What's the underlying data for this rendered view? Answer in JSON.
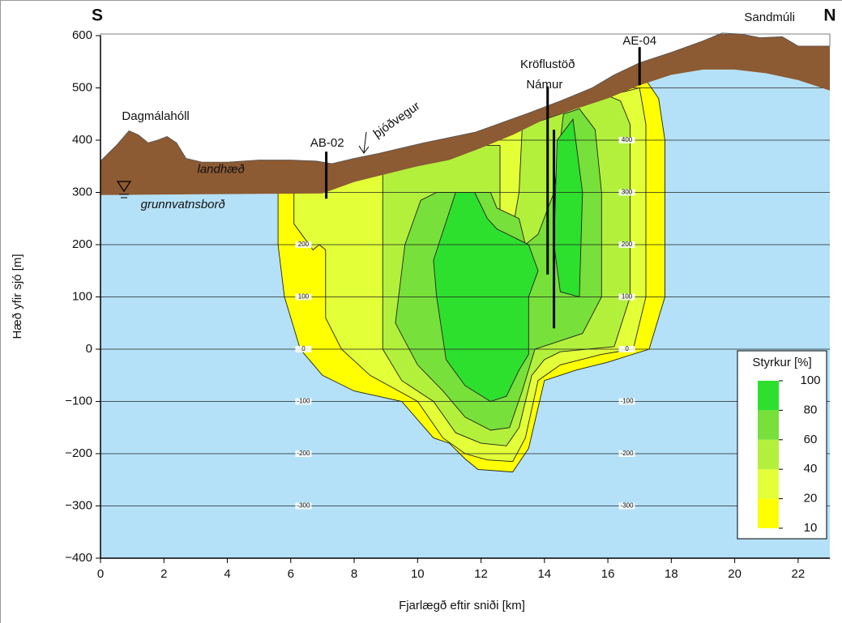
{
  "chart_data": {
    "type": "contour",
    "direction_labels": [
      "S",
      "N"
    ],
    "x_label": "Fjarlægð eftir sniði [km]",
    "y_label": "Hæð yfir sjó [m]",
    "xlim": [
      0,
      23
    ],
    "ylim": [
      -400,
      600
    ],
    "xticks": [
      0,
      2,
      4,
      6,
      8,
      10,
      12,
      14,
      16,
      18,
      20,
      22
    ],
    "yticks": [
      {
        "value": -400,
        "label": "−400"
      },
      {
        "value": -300,
        "label": "−300"
      },
      {
        "value": -200,
        "label": "−200"
      },
      {
        "value": -100,
        "label": "−100"
      },
      0,
      100,
      200,
      300,
      400,
      500,
      600
    ],
    "grid": true,
    "grid_labels": [
      {
        "x": 6.4,
        "values": [
          200,
          100,
          0,
          -100,
          -200,
          -300
        ]
      },
      {
        "x": 16.6,
        "values": [
          400,
          300,
          200,
          100,
          0,
          -100,
          -200,
          -300
        ]
      }
    ],
    "terrain": {
      "color": "#8c5a33",
      "x": [
        0,
        0.5,
        0.9,
        1.2,
        1.5,
        1.8,
        2.1,
        2.4,
        2.7,
        3.2,
        4,
        5,
        6,
        6.8,
        7.3,
        8,
        8.8,
        9.5,
        10.2,
        11,
        11.8,
        12.5,
        13.5,
        14.5,
        15.5,
        16.2,
        17,
        18,
        19,
        19.6,
        20.2,
        20.8,
        21.5,
        22,
        23
      ],
      "y": [
        360,
        390,
        418,
        410,
        395,
        400,
        407,
        395,
        365,
        358,
        358,
        362,
        362,
        360,
        355,
        365,
        375,
        385,
        395,
        405,
        415,
        430,
        452,
        475,
        500,
        525,
        548,
        568,
        590,
        605,
        603,
        596,
        598,
        580,
        580
      ]
    },
    "groundwater": {
      "color": "#b4e1f8",
      "x": [
        0,
        7,
        8,
        9,
        10,
        11,
        12,
        13,
        14,
        15,
        16,
        17,
        18,
        19,
        20,
        21,
        22,
        23
      ],
      "y": [
        295,
        298,
        320,
        335,
        350,
        362,
        385,
        410,
        440,
        460,
        480,
        505,
        525,
        535,
        535,
        528,
        515,
        495
      ]
    },
    "contours": [
      {
        "level": 10,
        "x": [
          5.6,
          5.6,
          5.8,
          6.3,
          7,
          8,
          9.5,
          10.5,
          11,
          11.5,
          11.9,
          13,
          13.5,
          14,
          15,
          16,
          17.3,
          17.8,
          17.8,
          17.6,
          17.2,
          16,
          14,
          12,
          10,
          8,
          7.2
        ],
        "y": [
          300,
          200,
          100,
          0,
          -50,
          -80,
          -100,
          -170,
          -180,
          -210,
          -230,
          -235,
          -190,
          -60,
          -40,
          -25,
          0,
          100,
          400,
          480,
          515,
          485,
          445,
          390,
          355,
          325,
          305
        ]
      },
      {
        "level": 20,
        "x": [
          6.1,
          6.1,
          6.4,
          6.7,
          6.9,
          7.1,
          7.1,
          7.6,
          8.5,
          10,
          10.8,
          11.5,
          12.2,
          13,
          13.4,
          13.8,
          14.5,
          15.8,
          16.8,
          17.2,
          17.2,
          17,
          16,
          14,
          12,
          10,
          8,
          7.2
        ],
        "y": [
          300,
          240,
          215,
          190,
          200,
          190,
          60,
          0,
          -50,
          -100,
          -170,
          -200,
          -212,
          -215,
          -170,
          -60,
          -30,
          -10,
          0,
          100,
          430,
          500,
          485,
          445,
          390,
          355,
          325,
          305
        ]
      },
      {
        "level": 40,
        "x": [
          8.9,
          8.9,
          9.5,
          10.5,
          11.2,
          12,
          12.8,
          13.2,
          13.6,
          14,
          14.5,
          16.2,
          16.7,
          16.7,
          16.4,
          16,
          14.5,
          13.3,
          13.2,
          13,
          12.8,
          12.6,
          12.6,
          12,
          10,
          8.9
        ],
        "y": [
          330,
          0,
          -60,
          -100,
          -160,
          -180,
          -185,
          -150,
          -50,
          -20,
          -5,
          5,
          100,
          430,
          475,
          485,
          450,
          425,
          300,
          230,
          220,
          240,
          390,
          390,
          355,
          335
        ]
      },
      {
        "level": 60,
        "x": [
          10.1,
          9.6,
          9.3,
          10,
          10.8,
          11.5,
          12.3,
          12.9,
          13.3,
          13.7,
          14.2,
          15.2,
          15.8,
          15.8,
          15.6,
          15.1,
          14.6,
          14.3,
          13.8,
          13.4,
          13.2,
          12.5,
          12.3,
          11.4,
          10.6
        ],
        "y": [
          285,
          200,
          50,
          -30,
          -80,
          -130,
          -155,
          -150,
          -80,
          0,
          10,
          30,
          100,
          300,
          420,
          460,
          450,
          300,
          220,
          200,
          250,
          270,
          300,
          300,
          300
        ]
      },
      {
        "level": 80,
        "x": [
          11.2,
          10.5,
          10.6,
          10.9,
          11.5,
          12.3,
          12.8,
          13.2,
          13.5,
          13.5,
          13.8,
          13.5,
          12.5,
          12.2,
          11.8
        ],
        "y": [
          300,
          170,
          100,
          -20,
          -70,
          -100,
          -90,
          -40,
          -10,
          100,
          150,
          200,
          230,
          250,
          300
        ]
      },
      {
        "level": 80,
        "x": [
          14.4,
          14.3,
          14.5,
          15.1,
          15.2,
          14.9
        ],
        "y": [
          400,
          200,
          110,
          100,
          300,
          440
        ]
      }
    ],
    "wells": {
      "x": [
        7.12,
        14.1,
        14.3,
        17.0
      ],
      "top": [
        378,
        503,
        420,
        578
      ],
      "bottom": [
        288,
        143,
        40,
        505
      ]
    },
    "annotations": [
      {
        "text": "Dagmálahóll",
        "x": 1.74,
        "y": 445
      },
      {
        "text": "Sandmúli",
        "x": 21.1,
        "y": 634
      },
      {
        "text": "Kröflustöð",
        "x": 14.1,
        "y": 544
      },
      {
        "text": "Námur",
        "x": 14.0,
        "y": 505
      },
      {
        "text": "AB-02",
        "x": 7.15,
        "y": 394
      },
      {
        "text": "AE-04",
        "x": 17.0,
        "y": 589
      },
      {
        "text": "þjóðvegur",
        "x": 9.35,
        "y": 438,
        "angle": -35
      },
      {
        "text": "landhæð",
        "x": 3.8,
        "y": 343,
        "italic": true
      },
      {
        "text": "grunnvatnsborð",
        "x": 2.6,
        "y": 276,
        "italic": true
      }
    ],
    "legend": {
      "title": "Styrkur [%]",
      "levels": [
        10,
        20,
        40,
        60,
        80,
        100
      ],
      "colors": [
        "#ffff00",
        "#e2ff38",
        "#b3f03c",
        "#77e03a",
        "#2ee02e"
      ]
    }
  }
}
